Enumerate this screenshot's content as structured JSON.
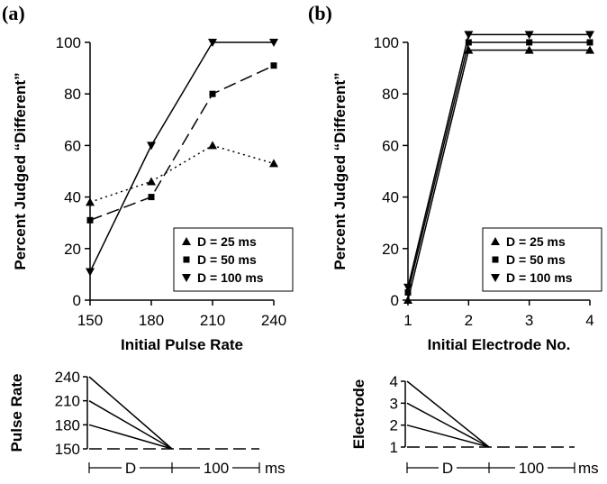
{
  "colors": {
    "ink": "#000000",
    "background": "#ffffff"
  },
  "chart_data": [
    {
      "panel": "(a)",
      "type": "line",
      "xlabel": "Initial Pulse Rate",
      "ylabel": "Percent Judged “Different”",
      "x": [
        150,
        180,
        210,
        240
      ],
      "xlim": [
        150,
        240
      ],
      "ylim": [
        0,
        100
      ],
      "yticks": [
        0,
        20,
        40,
        60,
        80,
        100
      ],
      "grid": false,
      "legend_position": "bottom-right",
      "series": [
        {
          "name": "D = 25 ms",
          "marker": "triangle-up",
          "line": "dotted",
          "values": [
            38,
            46,
            60,
            53
          ]
        },
        {
          "name": "D = 50 ms",
          "marker": "square",
          "line": "dashed",
          "values": [
            31,
            40,
            80,
            91
          ]
        },
        {
          "name": "D = 100 ms",
          "marker": "triangle-down",
          "line": "solid",
          "values": [
            11,
            60,
            100,
            100
          ]
        }
      ]
    },
    {
      "panel": "(b)",
      "type": "line",
      "xlabel": "Initial Electrode No.",
      "ylabel": "Percent Judged “Different”",
      "x": [
        1,
        2,
        3,
        4
      ],
      "xlim": [
        1,
        4
      ],
      "ylim": [
        0,
        100
      ],
      "yticks": [
        0,
        20,
        40,
        60,
        80,
        100
      ],
      "grid": false,
      "legend_position": "bottom-right",
      "series": [
        {
          "name": "D = 25 ms",
          "marker": "triangle-up",
          "line": "solid",
          "values": [
            0,
            97,
            97,
            97
          ]
        },
        {
          "name": "D = 50 ms",
          "marker": "square",
          "line": "solid",
          "values": [
            3,
            100,
            100,
            100
          ]
        },
        {
          "name": "D = 100 ms",
          "marker": "triangle-down",
          "line": "solid",
          "values": [
            5,
            103,
            103,
            103
          ]
        }
      ]
    },
    {
      "panel": "(a) schematic",
      "type": "line",
      "ylabel": "Pulse Rate",
      "yticks": [
        150,
        180,
        210,
        240
      ],
      "ylim": [
        150,
        240
      ],
      "time_labels": [
        "D",
        "100",
        "ms"
      ],
      "transitions": [
        {
          "start": 240,
          "end": 150
        },
        {
          "start": 210,
          "end": 150
        },
        {
          "start": 180,
          "end": 150
        }
      ],
      "baseline": {
        "value": 150,
        "line": "dashed"
      }
    },
    {
      "panel": "(b) schematic",
      "type": "line",
      "ylabel": "Electrode",
      "yticks": [
        1,
        2,
        3,
        4
      ],
      "ylim": [
        1,
        4
      ],
      "time_labels": [
        "D",
        "100",
        "ms"
      ],
      "transitions": [
        {
          "start": 4,
          "end": 1
        },
        {
          "start": 3,
          "end": 1
        },
        {
          "start": 2,
          "end": 1
        }
      ],
      "baseline": {
        "value": 1,
        "line": "dashed"
      }
    }
  ]
}
